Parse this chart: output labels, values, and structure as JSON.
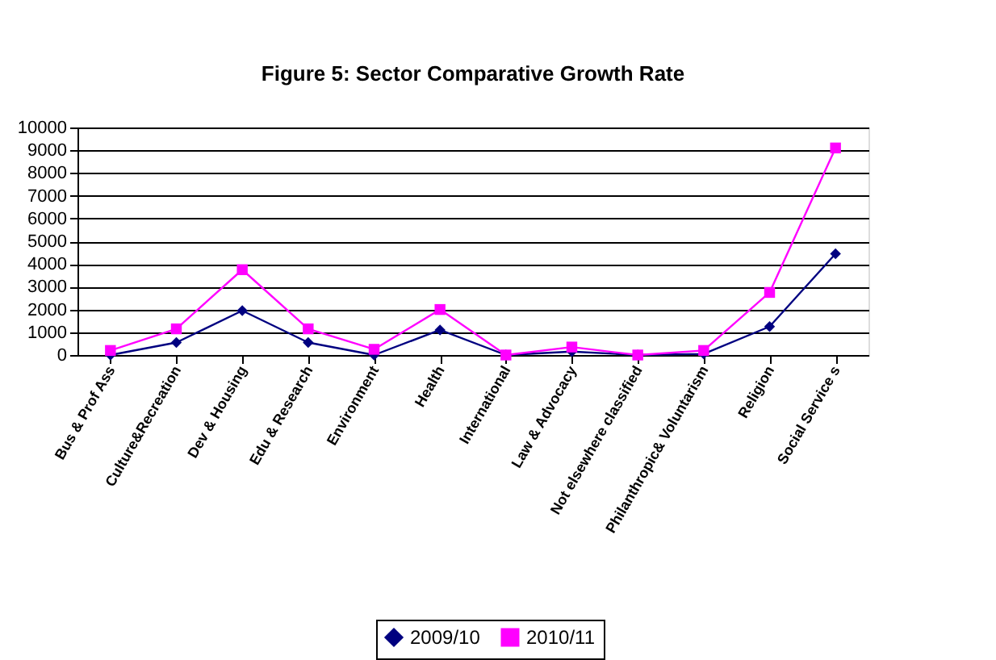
{
  "chart_data": {
    "type": "line",
    "title": "Figure 5: Sector Comparative Growth Rate",
    "categories": [
      "Bus & Prof Ass",
      "Culture&Recreation",
      "Dev & Housing",
      "Edu & Research",
      "Environment",
      "Health",
      "International",
      "Law & Advocacy",
      "Not elsewhere classified",
      "Philanthropic& Voluntarism",
      "Religion",
      "Social Service s"
    ],
    "series": [
      {
        "name": "2009/10",
        "color": "#000080",
        "marker": "diamond",
        "values": [
          0,
          550,
          1950,
          550,
          0,
          1100,
          0,
          150,
          0,
          50,
          1250,
          4450
        ]
      },
      {
        "name": "2010/11",
        "color": "#ff00ff",
        "marker": "square",
        "values": [
          200,
          1150,
          3750,
          1150,
          250,
          2000,
          0,
          350,
          0,
          200,
          2750,
          9100
        ]
      }
    ],
    "ylim": [
      0,
      10000
    ],
    "yticks": [
      0,
      1000,
      2000,
      3000,
      4000,
      5000,
      6000,
      7000,
      8000,
      9000,
      10000
    ],
    "grid": "y",
    "legend": "bottom",
    "line_style": "solid"
  }
}
